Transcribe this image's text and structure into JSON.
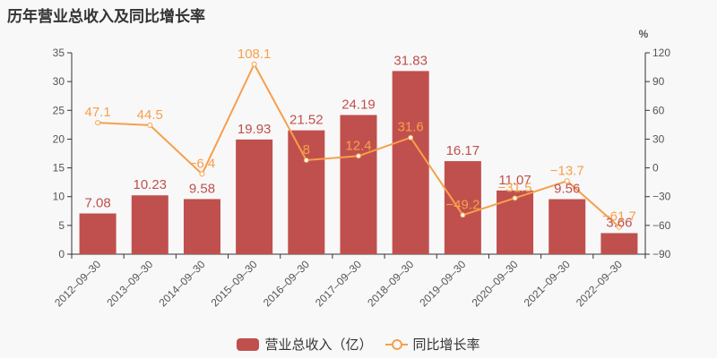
{
  "title": "历年营业总收入及同比增长率",
  "legend": {
    "bar_label": "营业总收入（亿）",
    "line_label": "同比增长率"
  },
  "colors": {
    "bar": "#c0504d",
    "line": "#f6a04c",
    "axis": "#333333",
    "background": "#f8f8f8"
  },
  "chart_data": {
    "type": "bar+line",
    "title": "历年营业总收入及同比增长率",
    "categories": [
      "2012-09-30",
      "2013-09-30",
      "2014-09-30",
      "2015-09-30",
      "2016-09-30",
      "2017-09-30",
      "2018-09-30",
      "2019-09-30",
      "2020-09-30",
      "2021-09-30",
      "2022-09-30"
    ],
    "series": [
      {
        "name": "营业总收入（亿）",
        "type": "bar",
        "axis": "left",
        "values": [
          7.08,
          10.23,
          9.58,
          19.93,
          21.52,
          24.19,
          31.83,
          16.17,
          11.07,
          9.56,
          3.66
        ]
      },
      {
        "name": "同比增长率",
        "type": "line",
        "axis": "right",
        "values": [
          47.1,
          44.5,
          -6.4,
          108.1,
          8,
          12.4,
          31.6,
          -49.2,
          -31.5,
          -13.7,
          -61.7
        ]
      }
    ],
    "left_axis": {
      "ylim": [
        0,
        35
      ],
      "ticks": [
        0,
        5,
        10,
        15,
        20,
        25,
        30,
        35
      ]
    },
    "right_axis": {
      "unit": "%",
      "ylim": [
        -90,
        120
      ],
      "ticks": [
        -90,
        -60,
        -30,
        0,
        30,
        60,
        90,
        120
      ]
    },
    "grid": false,
    "legend_position": "bottom"
  }
}
